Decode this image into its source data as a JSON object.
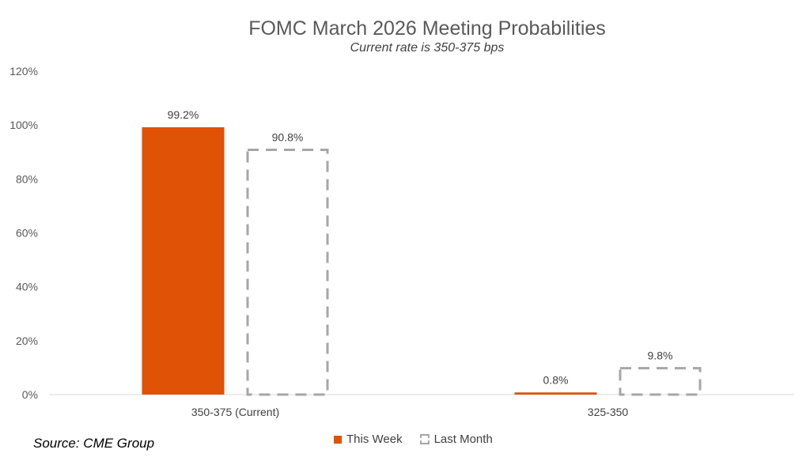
{
  "chart_data": {
    "type": "bar",
    "title": "FOMC March 2026 Meeting Probabilities",
    "subtitle": "Current rate is 350-375 bps",
    "categories": [
      "350-375 (Current)",
      "325-350"
    ],
    "series": [
      {
        "name": "This Week",
        "values": [
          99.2,
          0.8
        ],
        "labels": [
          "99.2%",
          "0.8%"
        ],
        "color": "#e05206",
        "style": "solid"
      },
      {
        "name": "Last Month",
        "values": [
          90.8,
          9.8
        ],
        "labels": [
          "90.8%",
          "9.8%"
        ],
        "color": "#a6a6a6",
        "style": "dashed"
      }
    ],
    "yticks": [
      "0%",
      "20%",
      "40%",
      "60%",
      "80%",
      "100%",
      "120%"
    ],
    "ylim": [
      0,
      120
    ],
    "grid": false,
    "legend": "bottom"
  },
  "source": "Source: CME Group"
}
